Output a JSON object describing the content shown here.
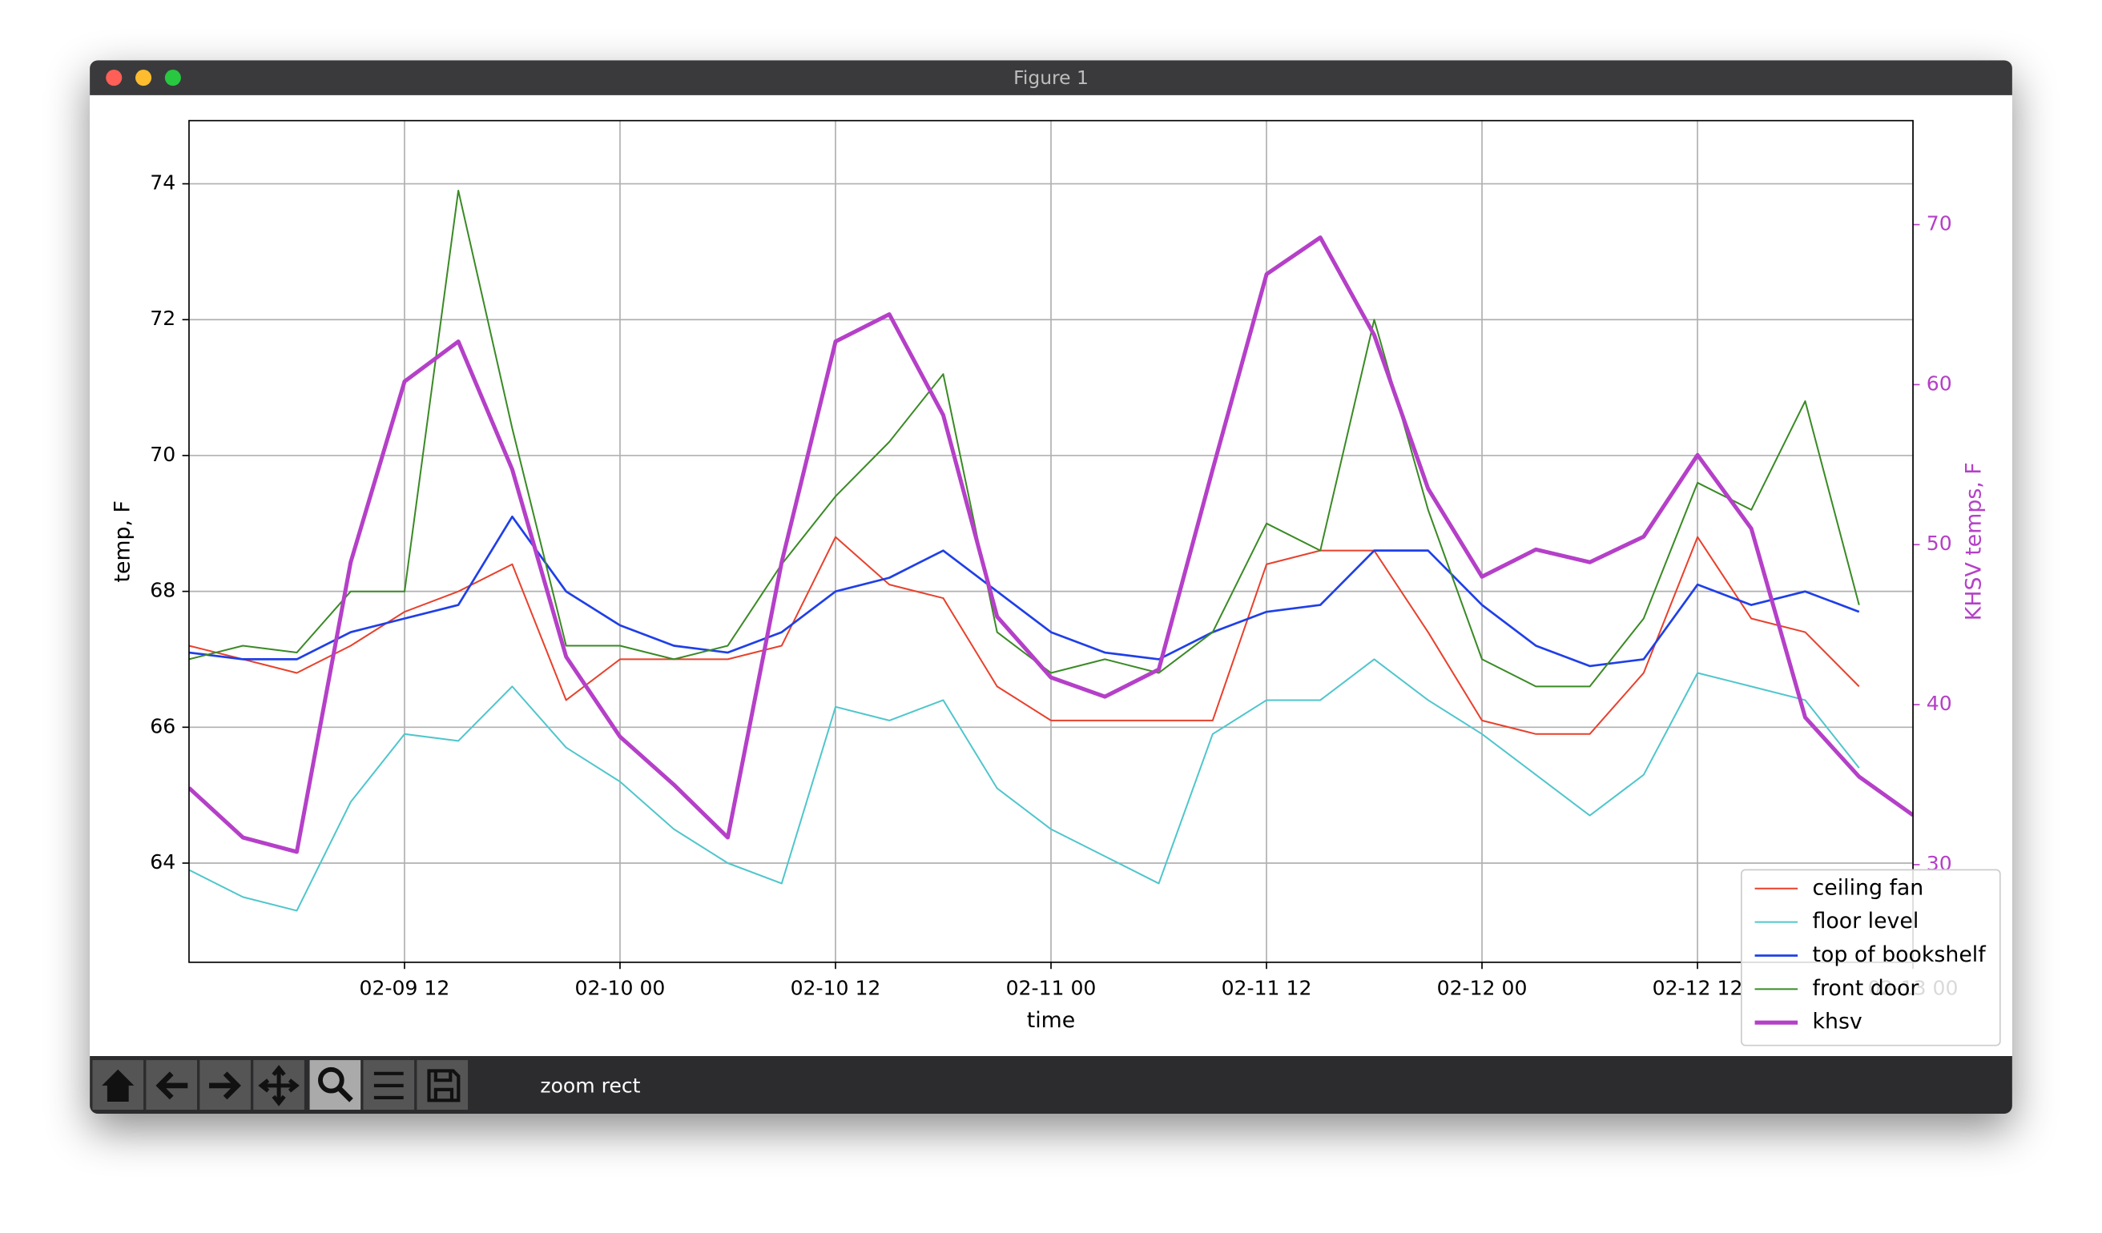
{
  "window": {
    "title": "Figure 1",
    "status": "zoom rect"
  },
  "chart_data": {
    "type": "line",
    "xlabel": "time",
    "ylabel": "temp, F",
    "y2label": "KHSV temps, F",
    "x": [
      "02-09 00",
      "02-09 03",
      "02-09 06",
      "02-09 09",
      "02-09 12",
      "02-09 15",
      "02-09 18",
      "02-09 21",
      "02-10 00",
      "02-10 03",
      "02-10 06",
      "02-10 09",
      "02-10 12",
      "02-10 15",
      "02-10 18",
      "02-10 21",
      "02-11 00",
      "02-11 03",
      "02-11 06",
      "02-11 09",
      "02-11 12",
      "02-11 15",
      "02-11 18",
      "02-11 21",
      "02-12 00",
      "02-12 03",
      "02-12 06",
      "02-12 09",
      "02-12 12",
      "02-12 15",
      "02-12 18",
      "02-12 21",
      "02-13 00"
    ],
    "xlim": [
      "02-09 00",
      "02-13 00"
    ],
    "xticks": [
      "02-09 12",
      "02-10 00",
      "02-10 12",
      "02-11 00",
      "02-11 12",
      "02-12 00",
      "02-12 12",
      "02-13 00"
    ],
    "ylim": [
      62.54,
      74.93
    ],
    "yticks": [
      64,
      66,
      68,
      70,
      72,
      74
    ],
    "y2lim": [
      23.9,
      76.5
    ],
    "y2ticks": [
      30,
      40,
      50,
      60,
      70
    ],
    "grid": true,
    "legend": "lower right",
    "series": [
      {
        "name": "ceiling fan",
        "color": "#e8412c",
        "width": 1.2,
        "values": [
          67.2,
          67.0,
          66.8,
          67.2,
          67.7,
          68.0,
          68.4,
          66.4,
          67.0,
          67.0,
          67.0,
          67.2,
          68.8,
          68.1,
          67.9,
          66.6,
          66.1,
          66.1,
          66.1,
          66.1,
          68.4,
          68.6,
          68.6,
          67.4,
          66.1,
          65.9,
          65.9,
          66.8,
          68.8,
          67.6,
          67.4,
          66.6,
          null
        ]
      },
      {
        "name": "floor level",
        "color": "#4fc6cc",
        "width": 1.2,
        "values": [
          63.9,
          63.5,
          63.3,
          64.9,
          65.9,
          65.8,
          66.6,
          65.7,
          65.2,
          64.5,
          64.0,
          63.7,
          66.3,
          66.1,
          66.4,
          65.1,
          64.5,
          64.1,
          63.7,
          65.9,
          66.4,
          66.4,
          67.0,
          66.4,
          65.9,
          65.3,
          64.7,
          65.3,
          66.8,
          66.6,
          66.4,
          65.4,
          null
        ]
      },
      {
        "name": "top of bookshelf",
        "color": "#1f3fe8",
        "width": 1.6,
        "values": [
          67.1,
          67.0,
          67.0,
          67.4,
          67.6,
          67.8,
          69.1,
          68.0,
          67.5,
          67.2,
          67.1,
          67.4,
          68.0,
          68.2,
          68.6,
          68.0,
          67.4,
          67.1,
          67.0,
          67.4,
          67.7,
          67.8,
          68.6,
          68.6,
          67.8,
          67.2,
          66.9,
          67.0,
          68.1,
          67.8,
          68.0,
          67.7,
          null
        ]
      },
      {
        "name": "front door",
        "color": "#3a8a25",
        "width": 1.2,
        "values": [
          67.0,
          67.2,
          67.1,
          68.0,
          68.0,
          73.9,
          70.4,
          67.2,
          67.2,
          67.0,
          67.2,
          68.4,
          69.4,
          70.2,
          71.2,
          67.4,
          66.8,
          67.0,
          66.8,
          67.4,
          69.0,
          68.6,
          72.0,
          69.2,
          67.0,
          66.6,
          66.6,
          67.6,
          69.6,
          69.2,
          70.8,
          67.8,
          null
        ]
      },
      {
        "name": "khsv",
        "color": "#b540c8",
        "width": 3,
        "axis": "y2",
        "values": [
          34.8,
          31.7,
          30.8,
          48.9,
          60.2,
          62.7,
          54.7,
          43.0,
          38.0,
          35.0,
          31.7,
          48.9,
          62.7,
          64.4,
          58.1,
          45.5,
          41.7,
          40.5,
          42.2,
          54.7,
          66.9,
          69.2,
          63.1,
          53.5,
          48.0,
          49.7,
          48.9,
          50.5,
          55.6,
          51.0,
          39.2,
          35.5,
          33.1
        ]
      }
    ]
  }
}
